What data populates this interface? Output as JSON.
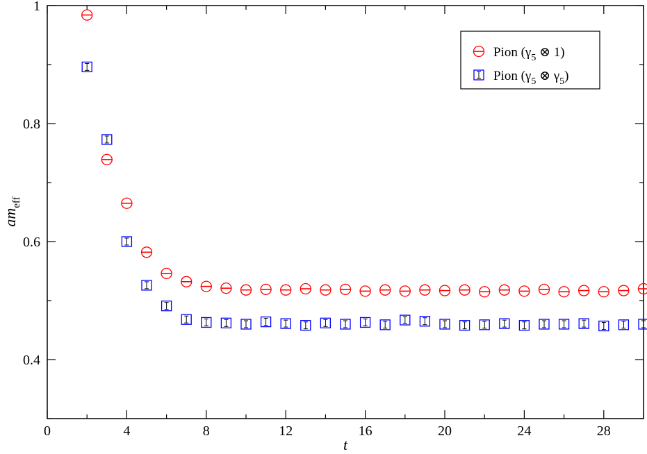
{
  "chart_data": {
    "type": "scatter",
    "xlabel": "t",
    "ylabel": "am",
    "ylabel_sub": "eff",
    "xlim": [
      0,
      30
    ],
    "ylim": [
      0.3,
      1.0
    ],
    "xticks": [
      "0",
      "4",
      "8",
      "12",
      "16",
      "20",
      "24",
      "28"
    ],
    "yticks": [
      "0.4",
      "0.6",
      "0.8",
      "1"
    ],
    "grid": false,
    "legend_position": "top-right",
    "series": [
      {
        "name": "Pion (γ5 ⊗ 1)",
        "legend_main": "Pion (γ",
        "legend_sub1": "5",
        "legend_mid": " ⊗ 1)",
        "legend_sub2": "",
        "legend_end": "",
        "marker": "circle",
        "color": "#ff0000",
        "x": [
          2,
          3,
          4,
          5,
          6,
          7,
          8,
          9,
          10,
          11,
          12,
          13,
          14,
          15,
          16,
          17,
          18,
          19,
          20,
          21,
          22,
          23,
          24,
          25,
          26,
          27,
          28,
          29,
          30
        ],
        "y": [
          0.984,
          0.739,
          0.665,
          0.582,
          0.546,
          0.532,
          0.524,
          0.521,
          0.518,
          0.519,
          0.518,
          0.52,
          0.518,
          0.519,
          0.516,
          0.518,
          0.516,
          0.518,
          0.517,
          0.518,
          0.515,
          0.518,
          0.516,
          0.519,
          0.515,
          0.517,
          0.515,
          0.517,
          0.52
        ]
      },
      {
        "name": "Pion (γ5 ⊗ γ5)",
        "legend_main": "Pion (γ",
        "legend_sub1": "5",
        "legend_mid": " ⊗ γ",
        "legend_sub2": "5",
        "legend_end": ")",
        "marker": "square",
        "color": "#0000ff",
        "x": [
          2,
          3,
          4,
          5,
          6,
          7,
          8,
          9,
          10,
          11,
          12,
          13,
          14,
          15,
          16,
          17,
          18,
          19,
          20,
          21,
          22,
          23,
          24,
          25,
          26,
          27,
          28,
          29,
          30
        ],
        "y": [
          0.896,
          0.773,
          0.6,
          0.526,
          0.491,
          0.468,
          0.463,
          0.462,
          0.46,
          0.464,
          0.461,
          0.458,
          0.462,
          0.46,
          0.463,
          0.459,
          0.467,
          0.465,
          0.46,
          0.458,
          0.459,
          0.461,
          0.458,
          0.46,
          0.46,
          0.461,
          0.457,
          0.459,
          0.46
        ]
      }
    ]
  }
}
